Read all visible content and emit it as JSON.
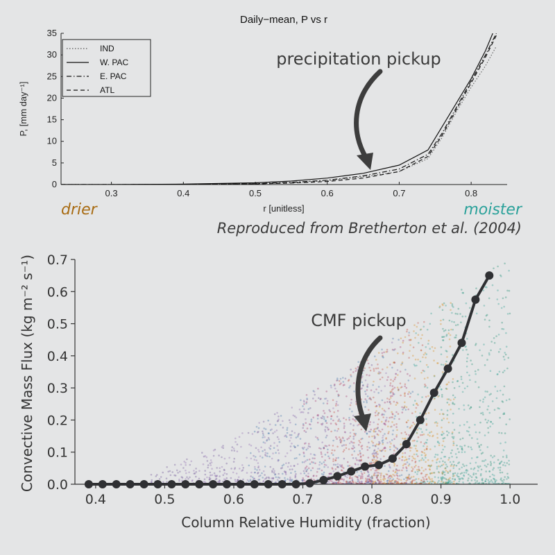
{
  "chart_data": [
    {
      "type": "line",
      "title": "Daily−mean, P vs r",
      "xlabel": "r [unitless]",
      "ylabel": "P, [mm day⁻¹]",
      "xlim": [
        0.23,
        0.85
      ],
      "ylim": [
        0,
        35
      ],
      "xticks": [
        "0.3",
        "0.4",
        "0.5",
        "0.6",
        "0.7",
        "0.8"
      ],
      "yticks": [
        "0",
        "5",
        "10",
        "15",
        "20",
        "25",
        "30",
        "35"
      ],
      "legend_placement": "top-left",
      "series": [
        {
          "name": "IND",
          "style": "dotted",
          "x": [
            0.23,
            0.3,
            0.4,
            0.5,
            0.55,
            0.6,
            0.65,
            0.7,
            0.74,
            0.76,
            0.78,
            0.8,
            0.82,
            0.835
          ],
          "y": [
            0,
            0,
            0.05,
            0.2,
            0.4,
            0.9,
            1.8,
            3.0,
            6.0,
            11.0,
            17.0,
            22.5,
            27.5,
            32.0
          ]
        },
        {
          "name": "W. PAC",
          "style": "solid",
          "x": [
            0.23,
            0.3,
            0.4,
            0.5,
            0.55,
            0.6,
            0.65,
            0.7,
            0.74,
            0.76,
            0.78,
            0.8,
            0.82,
            0.83
          ],
          "y": [
            0,
            0,
            0.1,
            0.4,
            0.8,
            1.5,
            2.6,
            4.5,
            8.0,
            13.5,
            19.0,
            24.5,
            31.0,
            35.0
          ]
        },
        {
          "name": "E. PAC",
          "style": "dashdot",
          "x": [
            0.23,
            0.3,
            0.4,
            0.5,
            0.55,
            0.6,
            0.65,
            0.7,
            0.74,
            0.76,
            0.78,
            0.8,
            0.82,
            0.835
          ],
          "y": [
            0,
            0,
            0.05,
            0.2,
            0.5,
            1.0,
            2.0,
            3.6,
            7.0,
            12.0,
            18.0,
            24.0,
            30.0,
            35.0
          ]
        },
        {
          "name": "ATL",
          "style": "dashed",
          "x": [
            0.23,
            0.3,
            0.4,
            0.5,
            0.55,
            0.6,
            0.65,
            0.7,
            0.74,
            0.76,
            0.78,
            0.8,
            0.82,
            0.835
          ],
          "y": [
            0,
            0,
            0.05,
            0.15,
            0.35,
            0.7,
            1.5,
            3.0,
            6.5,
            11.5,
            17.5,
            23.5,
            29.5,
            34.5
          ]
        }
      ]
    },
    {
      "type": "scatter",
      "title": "",
      "xlabel": "Column Relative Humidity (fraction)",
      "ylabel": "Convective Mass Flux (kg m⁻² s⁻¹)",
      "xlim": [
        0.37,
        1.04
      ],
      "ylim": [
        0,
        0.7
      ],
      "xticks": [
        "0.4",
        "0.5",
        "0.6",
        "0.7",
        "0.8",
        "0.9",
        "1.0"
      ],
      "yticks": [
        "0.0",
        "0.1",
        "0.2",
        "0.3",
        "0.4",
        "0.5",
        "0.6",
        "0.7"
      ],
      "scatter_colors": [
        "#6a4c93",
        "#8f6bb0",
        "#3b6fa5",
        "#2a9d8f",
        "#1a8a6e",
        "#d68a1a",
        "#c2473d",
        "#a3336b"
      ],
      "series": [
        {
          "name": "",
          "color": "#2f3033",
          "x": [
            0.39,
            0.41,
            0.43,
            0.45,
            0.47,
            0.49,
            0.51,
            0.53,
            0.55,
            0.57,
            0.59,
            0.61,
            0.63,
            0.65,
            0.67,
            0.69,
            0.71,
            0.73,
            0.75,
            0.77,
            0.79,
            0.81,
            0.83,
            0.85,
            0.87,
            0.89,
            0.91,
            0.93,
            0.95,
            0.97
          ],
          "y": [
            0,
            0,
            0,
            0,
            0,
            0,
            0,
            0,
            0,
            0,
            0,
            0,
            0,
            0,
            0,
            0,
            0.003,
            0.013,
            0.025,
            0.04,
            0.055,
            0.06,
            0.08,
            0.125,
            0.2,
            0.285,
            0.36,
            0.44,
            0.575,
            0.65
          ]
        }
      ]
    }
  ],
  "annotations": {
    "top_pickup": "precipitation pickup",
    "bottom_pickup": "CMF pickup",
    "drier": "drier",
    "moister": "moister",
    "credit": "Reproduced from Bretherton et al. (2004)"
  }
}
